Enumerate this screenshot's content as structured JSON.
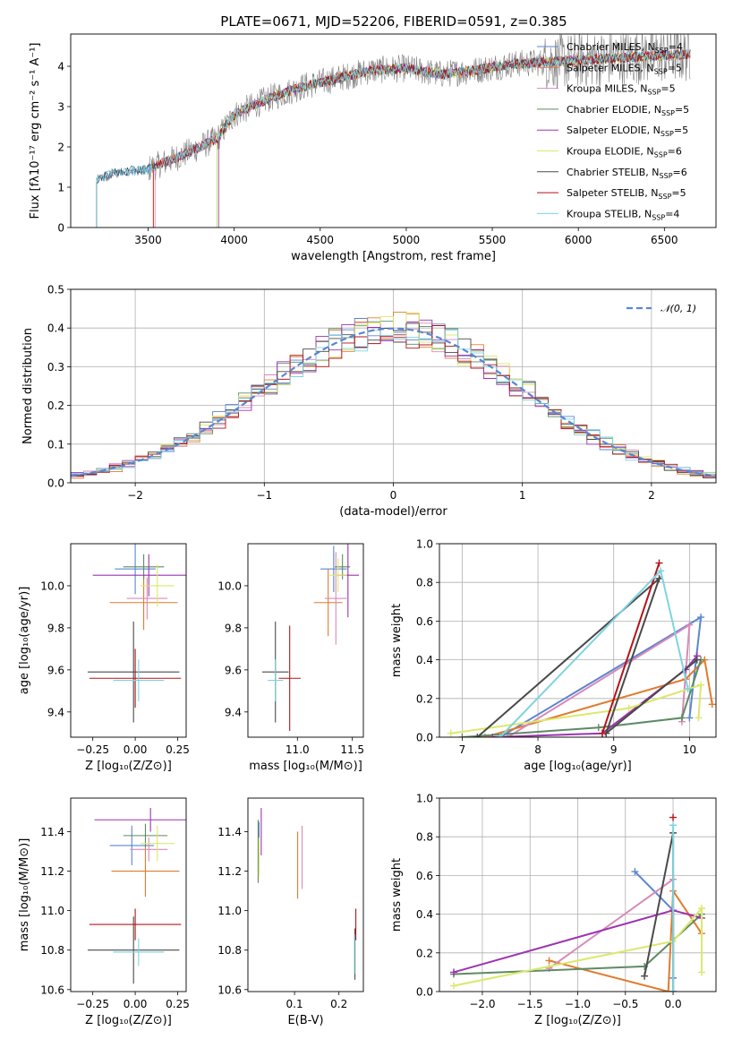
{
  "figure_title": "PLATE=0671, MJD=52206, FIBERID=0591, z=0.385",
  "colors": [
    "#5a86d2",
    "#e07b2e",
    "#d98ab8",
    "#5f8a64",
    "#9c34b0",
    "#dbe86b",
    "#4a4a4a",
    "#b4141a",
    "#7fd3df"
  ],
  "chart_data": [
    {
      "id": "spectrum",
      "type": "line",
      "title": "PLATE=0671, MJD=52206, FIBERID=0591, z=0.385",
      "xlabel": "wavelength [Angstrom, rest frame]",
      "ylabel": "Flux [fλ10⁻¹⁷ erg cm⁻² s⁻¹ A⁻¹]",
      "xlim": [
        3050,
        6800
      ],
      "ylim": [
        0,
        4.8
      ],
      "xticks": [
        3500,
        4000,
        4500,
        5000,
        5500,
        6000,
        6500
      ],
      "yticks": [
        0,
        1,
        2,
        3,
        4
      ],
      "grid": false,
      "legend_position": "top-right",
      "observed_range": [
        3200,
        6650
      ],
      "continuum_shape": {
        "x": [
          3200,
          3300,
          3500,
          3700,
          3900,
          4000,
          4200,
          4400,
          4600,
          4800,
          5000,
          5200,
          5400,
          5600,
          5800,
          6000,
          6200,
          6400,
          6650
        ],
        "y": [
          1.2,
          1.35,
          1.45,
          1.8,
          2.2,
          2.8,
          3.2,
          3.5,
          3.7,
          3.9,
          3.95,
          3.8,
          3.9,
          4.05,
          4.1,
          4.15,
          4.2,
          4.25,
          4.3
        ]
      },
      "series": [
        {
          "name": "Chabrier MILES, N",
          "nssp": "4",
          "start": 3200
        },
        {
          "name": "Salpeter MILES, N",
          "nssp": "5",
          "start": 3530
        },
        {
          "name": "Kroupa MILES, N",
          "nssp": "5",
          "start": 3540
        },
        {
          "name": "Chabrier ELODIE, N",
          "nssp": "5",
          "start": 3900
        },
        {
          "name": "Salpeter ELODIE, N",
          "nssp": "5",
          "start": 3910
        },
        {
          "name": "Kroupa ELODIE, N",
          "nssp": "6",
          "start": 3900
        },
        {
          "name": "Chabrier STELIB, N",
          "nssp": "6",
          "start": 3200
        },
        {
          "name": "Salpeter STELIB, N",
          "nssp": "5",
          "start": 3530
        },
        {
          "name": "Kroupa STELIB, N",
          "nssp": "4",
          "start": 3200
        }
      ],
      "legend_subscript": "SSP"
    },
    {
      "id": "residuals",
      "type": "line",
      "xlabel": "(data-model)/error",
      "ylabel": "Normed distribution",
      "xlim": [
        -2.5,
        2.5
      ],
      "ylim": [
        0,
        0.5
      ],
      "xticks": [
        -2,
        -1,
        0,
        1,
        2
      ],
      "yticks": [
        0.0,
        0.1,
        0.2,
        0.3,
        0.4,
        0.5
      ],
      "grid": true,
      "legend": "𝒩(0, 1)",
      "legend_position": "top-right",
      "bin_width": 0.1
    },
    {
      "id": "age-vs-z",
      "type": "scatter",
      "xlabel": "Z [log₁₀(Z/Z⊙)]",
      "ylabel": "age  [log₁₀(age/yr)]",
      "xlim": [
        -0.38,
        0.3
      ],
      "ylim": [
        9.28,
        10.2
      ],
      "xticks": [
        -0.25,
        0.0,
        0.25
      ],
      "yticks": [
        9.4,
        9.6,
        9.8,
        10.0
      ],
      "points": [
        {
          "x": 0.0,
          "y": 10.08,
          "xerr": 0.12,
          "yerr": 0.12
        },
        {
          "x": 0.05,
          "y": 9.92,
          "xerr": 0.2,
          "yerr": 0.13
        },
        {
          "x": 0.07,
          "y": 9.94,
          "xerr": 0.12,
          "yerr": 0.1
        },
        {
          "x": 0.05,
          "y": 10.09,
          "xerr": 0.12,
          "yerr": 0.06
        },
        {
          "x": 0.08,
          "y": 10.05,
          "xerr": 0.33,
          "yerr": 0.1
        },
        {
          "x": 0.13,
          "y": 10.0,
          "xerr": 0.1,
          "yerr": 0.1
        },
        {
          "x": -0.01,
          "y": 9.59,
          "xerr": 0.27,
          "yerr": 0.24
        },
        {
          "x": 0.0,
          "y": 9.56,
          "xerr": 0.27,
          "yerr": 0.14
        },
        {
          "x": 0.02,
          "y": 9.55,
          "xerr": 0.15,
          "yerr": 0.1
        }
      ]
    },
    {
      "id": "age-vs-mass",
      "type": "scatter",
      "xlabel": "mass [log₁₀(M/M⊙)]",
      "ylabel": "",
      "xlim": [
        10.55,
        11.6
      ],
      "ylim": [
        9.28,
        10.2
      ],
      "xticks": [
        11.0,
        11.5
      ],
      "yticks": [
        9.4,
        9.6,
        9.8,
        10.0
      ],
      "points": [
        {
          "x": 11.33,
          "y": 10.08,
          "xerr": 0.12,
          "yerr": 0.11
        },
        {
          "x": 11.28,
          "y": 9.92,
          "xerr": 0.13,
          "yerr": 0.16
        },
        {
          "x": 11.35,
          "y": 9.94,
          "xerr": 0.1,
          "yerr": 0.22
        },
        {
          "x": 11.41,
          "y": 10.09,
          "xerr": 0.07,
          "yerr": 0.06
        },
        {
          "x": 11.46,
          "y": 10.05,
          "xerr": 0.1,
          "yerr": 0.2
        },
        {
          "x": 11.37,
          "y": 10.05,
          "xerr": 0.08,
          "yerr": 0.08
        },
        {
          "x": 10.8,
          "y": 9.59,
          "xerr": 0.12,
          "yerr": 0.24
        },
        {
          "x": 10.93,
          "y": 9.56,
          "xerr": 0.1,
          "yerr": 0.25
        },
        {
          "x": 10.8,
          "y": 9.55,
          "xerr": 0.07,
          "yerr": 0.1
        }
      ]
    },
    {
      "id": "weight-vs-age",
      "type": "line",
      "xlabel": "age  [log₁₀(age/yr)]",
      "ylabel": "mass weight",
      "xlim": [
        6.7,
        10.35
      ],
      "ylim": [
        0,
        1.0
      ],
      "xticks": [
        7,
        8,
        9,
        10
      ],
      "yticks": [
        0.0,
        0.2,
        0.4,
        0.6,
        0.8,
        1.0
      ],
      "grid": true,
      "series": [
        {
          "x": [
            7.5,
            10.15,
            10.0
          ],
          "y": [
            0.0,
            0.62,
            0.1
          ]
        },
        {
          "x": [
            7.3,
            9.95,
            10.2,
            10.3
          ],
          "y": [
            0.0,
            0.3,
            0.4,
            0.17
          ]
        },
        {
          "x": [
            7.6,
            10.0,
            9.9
          ],
          "y": [
            0.0,
            0.58,
            0.08
          ]
        },
        {
          "x": [
            7.0,
            8.8,
            9.9,
            10.15
          ],
          "y": [
            0.0,
            0.05,
            0.1,
            0.4
          ]
        },
        {
          "x": [
            7.4,
            8.85,
            9.95,
            10.1
          ],
          "y": [
            0.0,
            0.02,
            0.35,
            0.42
          ]
        },
        {
          "x": [
            6.85,
            9.2,
            10.15,
            10.12
          ],
          "y": [
            0.02,
            0.15,
            0.27,
            0.1
          ]
        },
        {
          "x": [
            7.2,
            9.6,
            8.9,
            10.1
          ],
          "y": [
            0.0,
            0.82,
            0.02,
            0.4
          ]
        },
        {
          "x": [
            8.85,
            9.6
          ],
          "y": [
            0.02,
            0.9
          ]
        },
        {
          "x": [
            7.5,
            9.62,
            9.98
          ],
          "y": [
            0.0,
            0.86,
            0.25
          ]
        }
      ]
    },
    {
      "id": "mass-vs-z",
      "type": "scatter",
      "xlabel": "Z [log₁₀(Z/Z⊙)]",
      "ylabel": "mass [log₁₀(M/M⊙)]",
      "xlim": [
        -0.38,
        0.3
      ],
      "ylim": [
        10.59,
        11.57
      ],
      "xticks": [
        -0.25,
        0.0,
        0.25
      ],
      "yticks": [
        10.6,
        10.8,
        11.0,
        11.2,
        11.4
      ],
      "points": [
        {
          "x": -0.02,
          "y": 11.33,
          "xerr": 0.13,
          "yerr": 0.1
        },
        {
          "x": 0.06,
          "y": 11.2,
          "xerr": 0.2,
          "yerr": 0.13
        },
        {
          "x": 0.08,
          "y": 11.31,
          "xerr": 0.11,
          "yerr": 0.06
        },
        {
          "x": 0.06,
          "y": 11.38,
          "xerr": 0.13,
          "yerr": 0.06
        },
        {
          "x": 0.09,
          "y": 11.46,
          "xerr": 0.33,
          "yerr": 0.06
        },
        {
          "x": 0.13,
          "y": 11.34,
          "xerr": 0.1,
          "yerr": 0.09
        },
        {
          "x": -0.01,
          "y": 10.8,
          "xerr": 0.27,
          "yerr": 0.17
        },
        {
          "x": 0.0,
          "y": 10.93,
          "xerr": 0.27,
          "yerr": 0.08
        },
        {
          "x": 0.02,
          "y": 10.79,
          "xerr": 0.15,
          "yerr": 0.07
        }
      ]
    },
    {
      "id": "mass-vs-ebv",
      "type": "scatter",
      "xlabel": "E(B-V)",
      "ylabel": "",
      "xlim": [
        -0.005,
        0.255
      ],
      "ylim": [
        10.59,
        11.57
      ],
      "xticks": [
        0.1,
        0.2
      ],
      "yticks": [
        10.6,
        10.8,
        11.0,
        11.2,
        11.4
      ],
      "points": [
        {
          "x": 0.02,
          "y": 11.33,
          "xerr": 0,
          "yerr": 0.12
        },
        {
          "x": 0.107,
          "y": 11.23,
          "xerr": 0,
          "yerr": 0.17
        },
        {
          "x": 0.117,
          "y": 11.27,
          "xerr": 0,
          "yerr": 0.16
        },
        {
          "x": 0.018,
          "y": 11.3,
          "xerr": 0,
          "yerr": 0.16
        },
        {
          "x": 0.025,
          "y": 11.4,
          "xerr": 0,
          "yerr": 0.12
        },
        {
          "x": 0.02,
          "y": 11.27,
          "xerr": 0,
          "yerr": 0.1
        },
        {
          "x": 0.236,
          "y": 10.78,
          "xerr": 0,
          "yerr": 0.13
        },
        {
          "x": 0.238,
          "y": 10.93,
          "xerr": 0,
          "yerr": 0.08
        },
        {
          "x": 0.235,
          "y": 10.78,
          "xerr": 0,
          "yerr": 0.1
        }
      ]
    },
    {
      "id": "weight-vs-z",
      "type": "line",
      "xlabel": "Z [log₁₀(Z/Z⊙)]",
      "ylabel": "mass weight",
      "xlim": [
        -2.45,
        0.45
      ],
      "ylim": [
        0,
        1.0
      ],
      "xticks": [
        -2.0,
        -1.5,
        -1.0,
        -0.5,
        0.0
      ],
      "yticks": [
        0.0,
        0.2,
        0.4,
        0.6,
        0.8,
        1.0
      ],
      "grid": true,
      "series": [
        {
          "x": [
            -0.4,
            0.0,
            0.0
          ],
          "y": [
            0.62,
            0.42,
            0.07
          ]
        },
        {
          "x": [
            -1.3,
            -0.05,
            0.0,
            0.3
          ],
          "y": [
            0.16,
            0.0,
            0.52,
            0.3
          ]
        },
        {
          "x": [
            -1.3,
            0.0,
            0.0
          ],
          "y": [
            0.12,
            0.58,
            0.0
          ]
        },
        {
          "x": [
            -2.3,
            -0.3,
            0.3
          ],
          "y": [
            0.09,
            0.13,
            0.4
          ]
        },
        {
          "x": [
            -2.3,
            0.0,
            0.3
          ],
          "y": [
            0.1,
            0.42,
            0.38
          ]
        },
        {
          "x": [
            -2.3,
            0.0,
            0.3,
            0.3
          ],
          "y": [
            0.03,
            0.26,
            0.43,
            0.1
          ]
        },
        {
          "x": [
            -0.3,
            0.0,
            0.0
          ],
          "y": [
            0.08,
            0.82,
            0.0
          ]
        },
        {
          "x": [
            0.0
          ],
          "y": [
            0.9
          ]
        },
        {
          "x": [
            0.0,
            0.0
          ],
          "y": [
            0.86,
            0.0
          ]
        }
      ]
    }
  ]
}
